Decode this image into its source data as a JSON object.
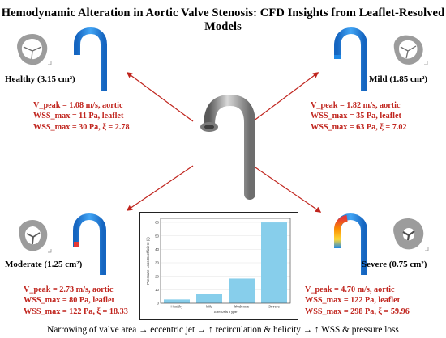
{
  "title": "Hemodynamic Alteration in Aortic Valve Stenosis: CFD Insights from Leaflet-Resolved Models",
  "cases": {
    "healthy": {
      "label": "Healthy (3.15 cm²)",
      "metrics": [
        "V_peak = 1.08 m/s, aortic",
        "WSS_max = 11 Pa, leaflet",
        "WSS_max = 30 Pa, ξ = 2.78"
      ]
    },
    "mild": {
      "label": "Mild (1.85 cm²)",
      "metrics": [
        "V_peak = 1.82 m/s, aortic",
        "WSS_max = 35 Pa, leaflet",
        "WSS_max = 63 Pa, ξ = 7.02"
      ]
    },
    "moderate": {
      "label": "Moderate (1.25 cm²)",
      "metrics": [
        "V_peak = 2.73 m/s, aortic",
        "WSS_max = 80 Pa, leaflet",
        "WSS_max = 122 Pa, ξ = 18.33"
      ]
    },
    "severe": {
      "label": "Severe (0.75 cm²)",
      "metrics": [
        "V_peak = 4.70 m/s, aortic",
        "WSS_max = 122 Pa, leaflet",
        "WSS_max = 298 Pa, ξ = 59.96"
      ]
    }
  },
  "footer": "Narrowing of valve area → eccentric jet → ↑ recirculation & helicity → ↑ WSS & pressure loss",
  "colors": {
    "metric_text": "#c0241d",
    "arrow": "#c0241d",
    "bar": "#87ceeb",
    "aorta_blue": "#1e88e5",
    "aorta_jet": "#e53935",
    "model_gray": "#8d8d8d"
  },
  "chart_data": {
    "type": "bar",
    "categories": [
      "Healthy",
      "Mild",
      "Moderate",
      "Severe"
    ],
    "values": [
      2.78,
      7.02,
      18.33,
      59.96
    ],
    "xlabel": "Stenosis Type",
    "ylabel": "Pressure Loss Coefficient (ξ)",
    "ylim": [
      0,
      63
    ],
    "yticks": [
      0,
      10,
      20,
      30,
      40,
      50,
      60
    ],
    "grid": true
  }
}
